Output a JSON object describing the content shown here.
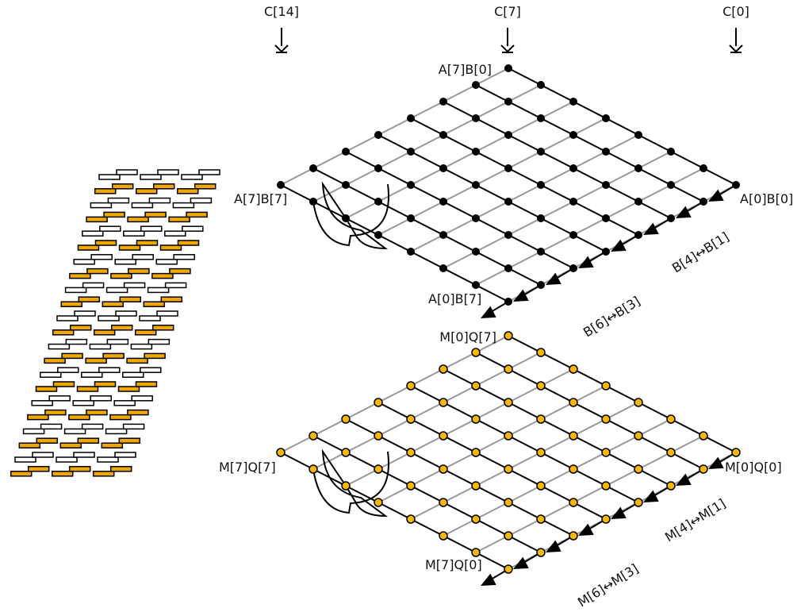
{
  "column_labels": {
    "c14": "C[14]",
    "c7": "C[7]",
    "c0": "C[0]"
  },
  "top_array": {
    "corner_top": "A[7]B[0]",
    "corner_left": "A[7]B[7]",
    "corner_right": "A[0]B[0]",
    "corner_bottom": "A[0]B[7]",
    "swap_inner": "B[4]↔B[1]",
    "swap_outer": "B[6]↔B[3]",
    "node_color": "#000000"
  },
  "bottom_array": {
    "corner_top": "M[0]Q[7]",
    "corner_left": "M[7]Q[7]",
    "corner_right": "M[0]Q[0]",
    "corner_bottom": "M[7]Q[0]",
    "swap_inner": "M[4]↔M[1]",
    "swap_outer": "M[6]↔M[3]",
    "node_color": "#f5b800"
  },
  "colors": {
    "line_black": "#000000",
    "line_gray": "#999999",
    "highlight": "#f0a800",
    "outline": "#000000"
  },
  "brick_rows": 22,
  "brick_pattern": [
    "outline",
    "highlight"
  ]
}
